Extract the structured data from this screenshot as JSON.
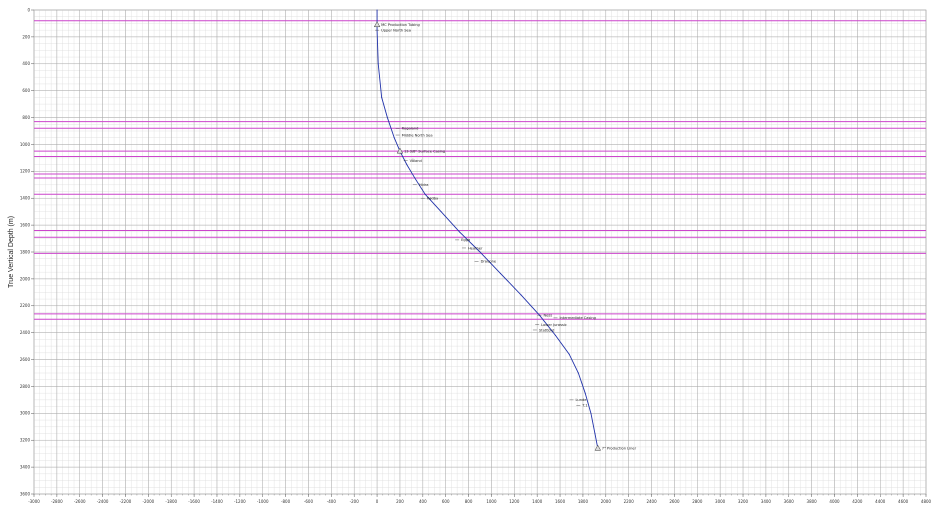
{
  "chart_data": {
    "type": "line",
    "title": "",
    "xlabel": "",
    "ylabel": "True Vertical Depth (m)",
    "xlim": [
      -3000,
      4800
    ],
    "ylim": [
      0,
      3600
    ],
    "y_inverted": true,
    "grid": true,
    "x_ticks": [
      "-3000",
      "-2800",
      "-2600",
      "-2400",
      "-2200",
      "-2000",
      "-1800",
      "-1600",
      "-1400",
      "-1200",
      "-1000",
      "-800",
      "-600",
      "-400",
      "-200",
      "0",
      "200",
      "400",
      "600",
      "800",
      "1000",
      "1200",
      "1400",
      "1600",
      "1800",
      "2000",
      "2200",
      "2400",
      "2600",
      "2800",
      "3000",
      "3200",
      "3400",
      "3600",
      "3800",
      "4000",
      "4200",
      "4400",
      "4600",
      "4800"
    ],
    "y_ticks": [
      "0",
      "200",
      "400",
      "600",
      "800",
      "1000",
      "1200",
      "1400",
      "1600",
      "1800",
      "2000",
      "2200",
      "2400",
      "2600",
      "2800",
      "3000",
      "3200",
      "3400",
      "3600"
    ],
    "series": [
      {
        "x": [
          0,
          0,
          10,
          40,
          90,
          150,
          200,
          260,
          330,
          420,
          560,
          720,
          900,
          1080,
          1260,
          1420,
          1560,
          1680,
          1760,
          1820,
          1870,
          1905,
          1930
        ],
        "y": [
          0,
          150,
          400,
          650,
          800,
          950,
          1050,
          1150,
          1250,
          1370,
          1500,
          1650,
          1800,
          1960,
          2120,
          2270,
          2420,
          2560,
          2700,
          2850,
          3000,
          3150,
          3260
        ]
      }
    ],
    "formation_lines": [
      {
        "depth": 80,
        "color": "#cc44cc"
      },
      {
        "depth": 830,
        "color": "#cc44cc"
      },
      {
        "depth": 880,
        "color": "#cc44cc"
      },
      {
        "depth": 1050,
        "color": "#cc44cc"
      },
      {
        "depth": 1090,
        "color": "#cc44cc"
      },
      {
        "depth": 1220,
        "color": "#cc44cc"
      },
      {
        "depth": 1250,
        "color": "#cc44cc"
      },
      {
        "depth": 1370,
        "color": "#cc44cc"
      },
      {
        "depth": 1640,
        "color": "#cc44cc"
      },
      {
        "depth": 1690,
        "color": "#cc44cc"
      },
      {
        "depth": 1810,
        "color": "#cc44cc"
      },
      {
        "depth": 2260,
        "color": "#cc44cc"
      },
      {
        "depth": 2300,
        "color": "#cc44cc"
      }
    ],
    "annotations": [
      {
        "text": "MC Production Tubing",
        "x": 0,
        "y": 110,
        "marker": "triangle"
      },
      {
        "text": "Upper North Sea",
        "x": 0,
        "y": 150,
        "marker": null
      },
      {
        "text": "Rogaland",
        "x": 180,
        "y": 880,
        "marker": null
      },
      {
        "text": "Middle North Sea",
        "x": 180,
        "y": 930,
        "marker": null
      },
      {
        "text": "13 3/8\" Surface Casing",
        "x": 200,
        "y": 1050,
        "marker": "triangle"
      },
      {
        "text": "Våland",
        "x": 250,
        "y": 1120,
        "marker": null
      },
      {
        "text": "Hidra",
        "x": 330,
        "y": 1300,
        "marker": null
      },
      {
        "text": "Rødby",
        "x": 400,
        "y": 1400,
        "marker": null
      },
      {
        "text": "Egga",
        "x": 700,
        "y": 1710,
        "marker": null
      },
      {
        "text": "Heather",
        "x": 760,
        "y": 1770,
        "marker": null
      },
      {
        "text": "Draupne",
        "x": 870,
        "y": 1870,
        "marker": null
      },
      {
        "text": "Ness",
        "x": 1420,
        "y": 2270,
        "marker": null
      },
      {
        "text": "Intermediate Casing",
        "x": 1560,
        "y": 2290,
        "marker": null
      },
      {
        "text": "Lower Jurassic",
        "x": 1400,
        "y": 2340,
        "marker": null
      },
      {
        "text": "Statfjord",
        "x": 1380,
        "y": 2380,
        "marker": null
      },
      {
        "text": "Lunde",
        "x": 1700,
        "y": 2900,
        "marker": null
      },
      {
        "text": "T.1",
        "x": 1760,
        "y": 2940,
        "marker": null
      },
      {
        "text": "7\" Production Liner",
        "x": 1930,
        "y": 3260,
        "marker": "triangle"
      }
    ],
    "line_color": "#2233aa",
    "formation_color": "#cc44cc"
  }
}
